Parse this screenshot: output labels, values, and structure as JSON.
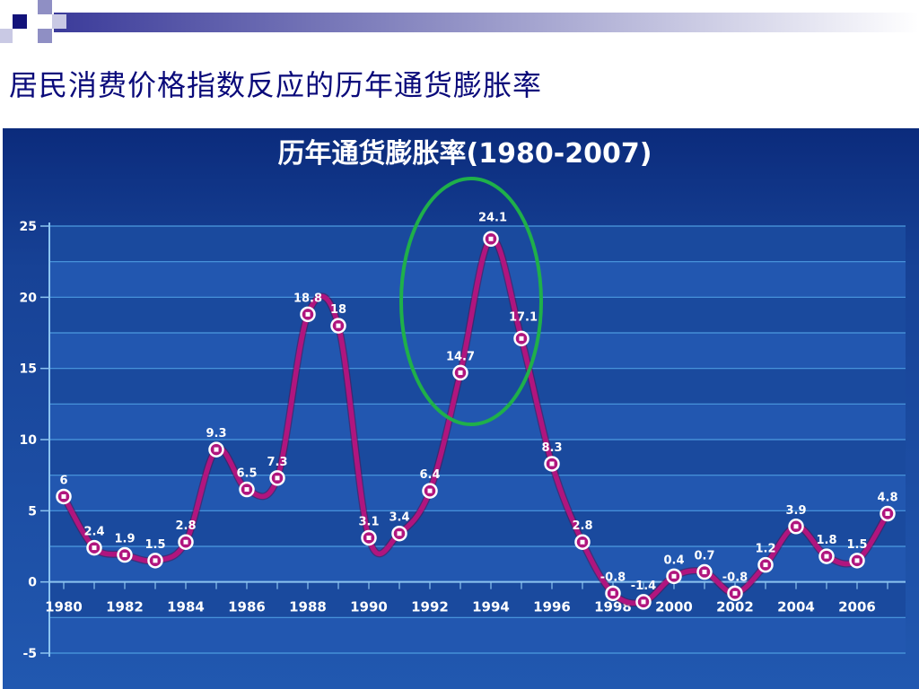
{
  "slide": {
    "title": "居民消费价格指数反应的历年通货膨胀率"
  },
  "colors": {
    "slide_title": "#0a0a7a",
    "panel_background": "#1d4fa5",
    "line": "#b0157e",
    "highlight_ellipse": "#1fb04a",
    "label": "#ffffff"
  },
  "chart_data": {
    "type": "line",
    "title": "历年通货膨胀率(1980-2007)",
    "xlabel": "",
    "ylabel": "",
    "ylim": [
      -5,
      25
    ],
    "yticks": [
      "25",
      "20",
      "15",
      "10",
      "5",
      "0",
      "-5"
    ],
    "xticks": [
      "1980",
      "1982",
      "1984",
      "1986",
      "1988",
      "1990",
      "1992",
      "1994",
      "1996",
      "1998",
      "2000",
      "2002",
      "2004",
      "2006"
    ],
    "grid": true,
    "legend": "none",
    "x": [
      1980,
      1981,
      1982,
      1983,
      1984,
      1985,
      1986,
      1987,
      1988,
      1989,
      1990,
      1991,
      1992,
      1993,
      1994,
      1995,
      1996,
      1997,
      1998,
      1999,
      2000,
      2001,
      2002,
      2003,
      2004,
      2005,
      2006,
      2007
    ],
    "series": [
      {
        "values": [
          6,
          2.4,
          1.9,
          1.5,
          2.8,
          9.3,
          6.5,
          7.3,
          18.8,
          18,
          3.1,
          3.4,
          6.4,
          14.7,
          24.1,
          17.1,
          8.3,
          2.8,
          -0.8,
          -1.4,
          0.4,
          0.7,
          -0.8,
          1.2,
          3.9,
          1.8,
          1.5,
          4.8
        ],
        "labels": [
          "6",
          "2.4",
          "1.9",
          "1.5",
          "2.8",
          "9.3",
          "6.5",
          "7.3",
          "18.8",
          "18",
          "3.1",
          "3.4",
          "6.4",
          "14.7",
          "24.1",
          "17.1",
          "8.3",
          "2.8",
          "-0.8",
          "-1.4",
          "0.4",
          "0.7",
          "-0.8",
          "1.2",
          "3.9",
          "1.8",
          "1.5",
          "4.8"
        ]
      }
    ],
    "annotations": [
      {
        "type": "ellipse",
        "around_years": [
          1993,
          1994,
          1995
        ]
      }
    ]
  }
}
